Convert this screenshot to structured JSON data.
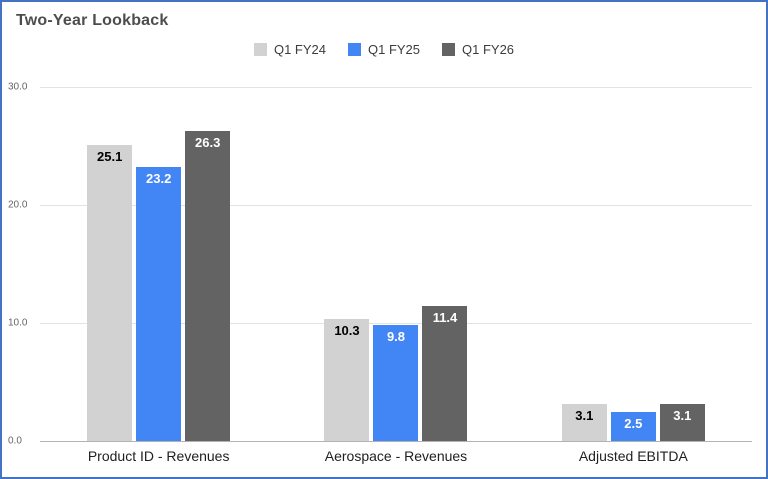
{
  "chart_data": {
    "type": "bar",
    "title": "Two-Year Lookback",
    "categories": [
      "Product ID - Revenues",
      "Aerospace - Revenues",
      "Adjusted EBITDA"
    ],
    "series": [
      {
        "name": "Q1 FY24",
        "color": "#d2d2d2",
        "label_color": "#000000",
        "values": [
          25.1,
          10.3,
          3.1
        ]
      },
      {
        "name": "Q1 FY25",
        "color": "#4285f4",
        "label_color": "#ffffff",
        "values": [
          23.2,
          9.8,
          2.5
        ]
      },
      {
        "name": "Q1 FY26",
        "color": "#636363",
        "label_color": "#ffffff",
        "values": [
          26.3,
          11.4,
          3.1
        ]
      }
    ],
    "ylim": [
      0,
      30
    ],
    "yticks": [
      {
        "value": 30,
        "label": "30.0"
      },
      {
        "value": 20,
        "label": "20.0"
      },
      {
        "value": 10,
        "label": "10.0"
      },
      {
        "value": 0,
        "label": "0.0"
      }
    ],
    "grid": true,
    "legend_position": "top"
  },
  "colors": {
    "frame_border": "#4472c4",
    "gridline": "#e3e3e3",
    "baseline": "#b3b3b3",
    "title_text": "#4d4d4d"
  }
}
